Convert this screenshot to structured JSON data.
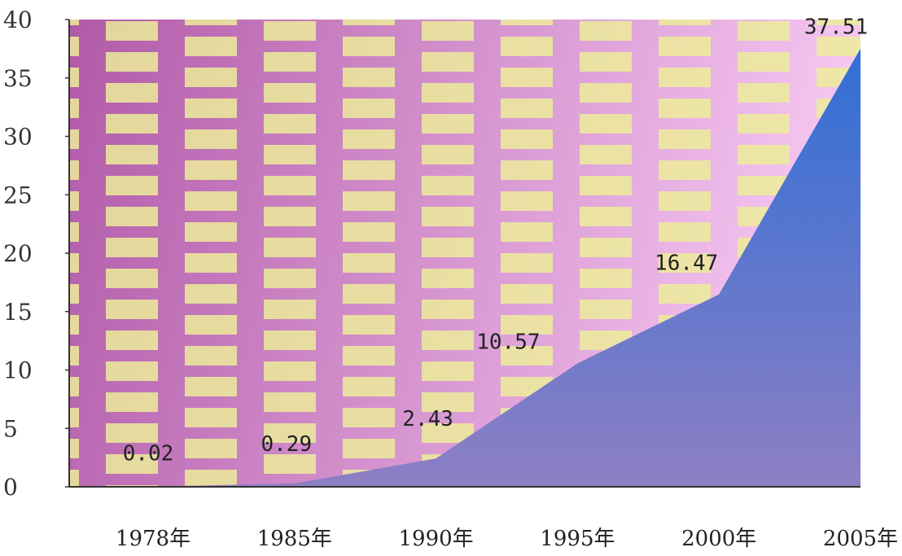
{
  "chart_data": {
    "type": "area",
    "title": "",
    "xlabel": "",
    "ylabel": "",
    "categories": [
      "1978年",
      "1985年",
      "1990年",
      "1995年",
      "2000年",
      "2005年"
    ],
    "series": [
      {
        "values": [
          0.02,
          0.29,
          2.43,
          10.57,
          16.47,
          37.51
        ],
        "labels": [
          "0.02",
          "0.29",
          "2.43",
          "10.57",
          "16.47",
          "37.51"
        ]
      }
    ],
    "ylim": [
      0,
      40
    ],
    "yticks": [
      "0",
      "5",
      "10",
      "15",
      "20",
      "25",
      "30",
      "35",
      "40"
    ],
    "grid": false,
    "legend": "none"
  },
  "colors": {
    "area_top": "#2f6fd6",
    "area_bottom": "#8e7fc4",
    "background_left": "#b15aa8",
    "background_right": "#f6c8f2",
    "pattern_rect": "#ecec9a",
    "axis": "#333333"
  }
}
